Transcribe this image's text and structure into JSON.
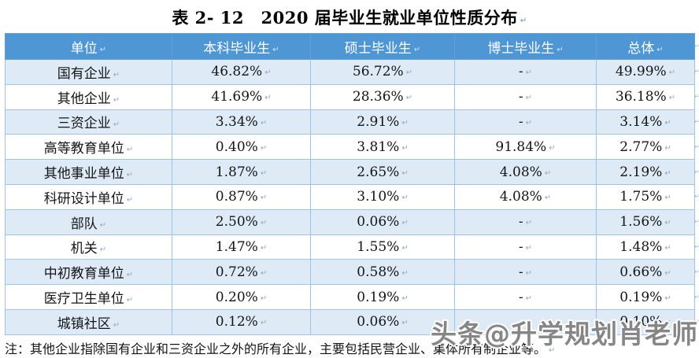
{
  "title": {
    "text": "表 2- 12　2020 届毕业生就业单位性质分布"
  },
  "marks": {
    "return": "↵"
  },
  "table": {
    "columns": [
      "单位",
      "本科毕业生",
      "硕士毕业生",
      "博士毕业生",
      "总体"
    ],
    "rows": [
      {
        "category": "国有企业",
        "values": [
          "46.82%",
          "56.72%",
          "-",
          "49.99%"
        ]
      },
      {
        "category": "其他企业",
        "values": [
          "41.69%",
          "28.36%",
          "-",
          "36.18%"
        ]
      },
      {
        "category": "三资企业",
        "values": [
          "3.34%",
          "2.91%",
          "-",
          "3.14%"
        ]
      },
      {
        "category": "高等教育单位",
        "values": [
          "0.40%",
          "3.81%",
          "91.84%",
          "2.77%"
        ]
      },
      {
        "category": "其他事业单位",
        "values": [
          "1.87%",
          "2.65%",
          "4.08%",
          "2.19%"
        ]
      },
      {
        "category": "科研设计单位",
        "values": [
          "0.87%",
          "3.10%",
          "4.08%",
          "1.75%"
        ]
      },
      {
        "category": "部队",
        "values": [
          "2.50%",
          "0.06%",
          "-",
          "1.56%"
        ]
      },
      {
        "category": "机关",
        "values": [
          "1.47%",
          "1.55%",
          "-",
          "1.48%"
        ]
      },
      {
        "category": "中初教育单位",
        "values": [
          "0.72%",
          "0.58%",
          "-",
          "0.66%"
        ]
      },
      {
        "category": "医疗卫生单位",
        "values": [
          "0.20%",
          "0.19%",
          "-",
          "0.19%"
        ]
      },
      {
        "category": "城镇社区",
        "values": [
          "0.12%",
          "0.06%",
          "-",
          "0.10%"
        ]
      }
    ]
  },
  "note": {
    "text": "注：其他企业指除国有企业和三资企业之外的所有企业，主要包括民营企业、集体所有制企业等。"
  },
  "watermark": {
    "text": "头条@升学规划肖老师"
  },
  "colors": {
    "header_bg": "#4F96D4",
    "band_bg": "#DEEBF7",
    "border": "#9DC3E6",
    "header_text": "#FFFFFF"
  }
}
